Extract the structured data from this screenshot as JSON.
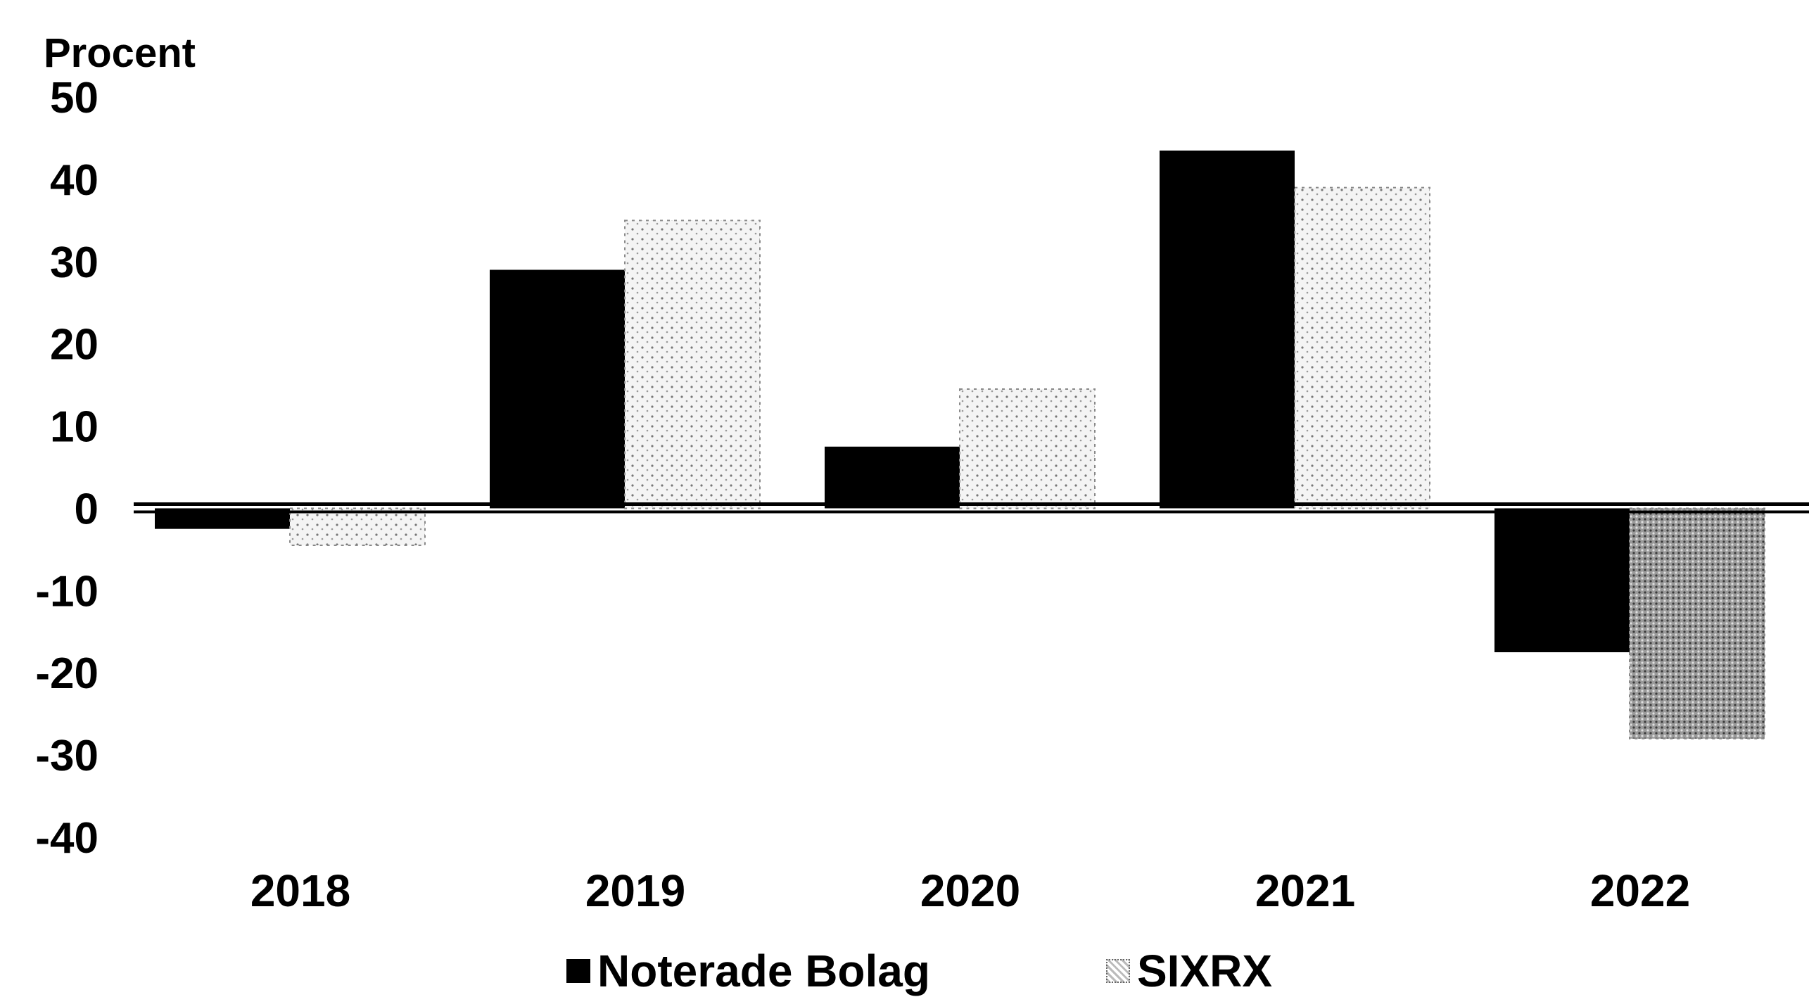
{
  "chart_data": {
    "type": "bar",
    "ylabel": "Procent",
    "categories": [
      "2018",
      "2019",
      "2020",
      "2021",
      "2022"
    ],
    "ylim": [
      -40,
      50
    ],
    "yticks": [
      50,
      40,
      30,
      20,
      10,
      0,
      -10,
      -20,
      -30,
      -40
    ],
    "grid": false,
    "legend_position": "bottom-center",
    "series": [
      {
        "name": "Noterade Bolag",
        "values": [
          -2.5,
          29,
          7.5,
          43.5,
          -17.5
        ],
        "color": "#000000"
      },
      {
        "name": "SIXRX",
        "values": [
          -4.5,
          35,
          14.5,
          39,
          -28
        ],
        "color": "#d9d9d9"
      }
    ]
  }
}
